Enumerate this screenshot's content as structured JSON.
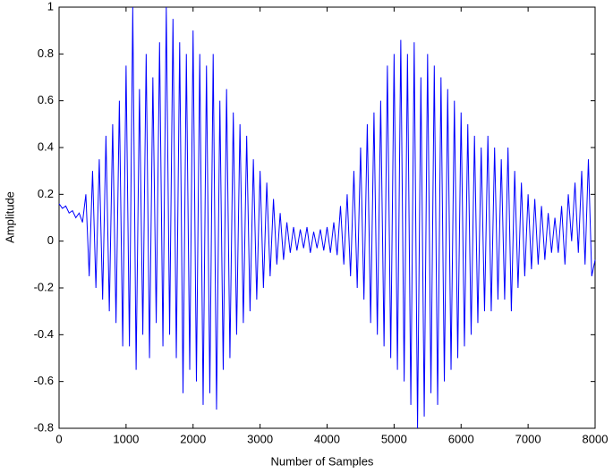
{
  "chart_data": {
    "type": "line",
    "xlabel": "Number of Samples",
    "ylabel": "Amplitude",
    "xlim": [
      0,
      8000
    ],
    "xticks": [
      0,
      1000,
      2000,
      3000,
      4000,
      5000,
      6000,
      7000,
      8000
    ],
    "ylim": [
      -0.8,
      1
    ],
    "yticks": [
      -0.8,
      -0.6,
      -0.4,
      -0.2,
      0,
      0.2,
      0.4,
      0.6,
      0.8,
      1
    ],
    "grid": false,
    "series": [
      {
        "color": "#0000ff",
        "x": [
          0,
          50,
          100,
          150,
          200,
          250,
          300,
          350,
          400,
          450,
          500,
          550,
          600,
          650,
          700,
          750,
          800,
          850,
          900,
          950,
          1000,
          1050,
          1100,
          1150,
          1200,
          1250,
          1300,
          1350,
          1400,
          1450,
          1500,
          1550,
          1600,
          1650,
          1700,
          1750,
          1800,
          1850,
          1900,
          1950,
          2000,
          2050,
          2100,
          2150,
          2200,
          2250,
          2300,
          2350,
          2400,
          2450,
          2500,
          2550,
          2600,
          2650,
          2700,
          2750,
          2800,
          2850,
          2900,
          2950,
          3000,
          3050,
          3100,
          3150,
          3200,
          3250,
          3300,
          3350,
          3400,
          3450,
          3500,
          3550,
          3600,
          3650,
          3700,
          3750,
          3800,
          3850,
          3900,
          3950,
          4000,
          4050,
          4100,
          4150,
          4200,
          4250,
          4300,
          4350,
          4400,
          4450,
          4500,
          4550,
          4600,
          4650,
          4700,
          4750,
          4800,
          4850,
          4900,
          4950,
          5000,
          5050,
          5100,
          5150,
          5200,
          5250,
          5300,
          5350,
          5400,
          5450,
          5500,
          5550,
          5600,
          5650,
          5700,
          5750,
          5800,
          5850,
          5900,
          5950,
          6000,
          6050,
          6100,
          6150,
          6200,
          6250,
          6300,
          6350,
          6400,
          6450,
          6500,
          6550,
          6600,
          6650,
          6700,
          6750,
          6800,
          6850,
          6900,
          6950,
          7000,
          7050,
          7100,
          7150,
          7200,
          7250,
          7300,
          7350,
          7400,
          7450,
          7500,
          7550,
          7600,
          7650,
          7700,
          7750,
          7800,
          7850,
          7900,
          7950,
          8000
        ],
        "values": [
          0.16,
          0.14,
          0.15,
          0.12,
          0.13,
          0.1,
          0.12,
          0.08,
          0.2,
          -0.15,
          0.3,
          -0.2,
          0.35,
          -0.25,
          0.45,
          -0.3,
          0.5,
          -0.35,
          0.6,
          -0.45,
          0.75,
          -0.45,
          1.0,
          -0.55,
          0.65,
          -0.4,
          0.8,
          -0.5,
          0.7,
          -0.35,
          0.85,
          -0.45,
          1.0,
          -0.4,
          0.95,
          -0.5,
          0.85,
          -0.65,
          0.8,
          -0.55,
          0.9,
          -0.6,
          0.8,
          -0.7,
          0.75,
          -0.65,
          0.8,
          -0.72,
          0.6,
          -0.55,
          0.65,
          -0.5,
          0.55,
          -0.4,
          0.5,
          -0.35,
          0.45,
          -0.3,
          0.35,
          -0.25,
          0.3,
          -0.2,
          0.25,
          -0.15,
          0.18,
          -0.1,
          0.12,
          -0.08,
          0.08,
          -0.05,
          0.06,
          -0.04,
          0.05,
          -0.03,
          0.06,
          -0.05,
          0.04,
          -0.03,
          0.05,
          -0.04,
          0.06,
          -0.05,
          0.08,
          -0.06,
          0.15,
          -0.1,
          0.2,
          -0.15,
          0.3,
          -0.2,
          0.4,
          -0.25,
          0.5,
          -0.35,
          0.55,
          -0.4,
          0.6,
          -0.45,
          0.75,
          -0.5,
          0.8,
          -0.55,
          0.86,
          -0.6,
          0.8,
          -0.7,
          0.85,
          -0.8,
          0.7,
          -0.75,
          0.8,
          -0.65,
          0.75,
          -0.7,
          0.7,
          -0.6,
          0.65,
          -0.55,
          0.6,
          -0.5,
          0.55,
          -0.45,
          0.5,
          -0.4,
          0.45,
          -0.35,
          0.4,
          -0.3,
          0.45,
          -0.3,
          0.4,
          -0.25,
          0.35,
          -0.25,
          0.4,
          -0.3,
          0.3,
          -0.2,
          0.25,
          -0.15,
          0.2,
          -0.12,
          0.18,
          -0.1,
          0.15,
          -0.08,
          0.12,
          -0.05,
          0.1,
          -0.05,
          0.15,
          -0.1,
          0.2,
          0.0,
          0.25,
          -0.05,
          0.3,
          -0.1,
          0.35,
          -0.15,
          -0.08
        ]
      }
    ]
  }
}
